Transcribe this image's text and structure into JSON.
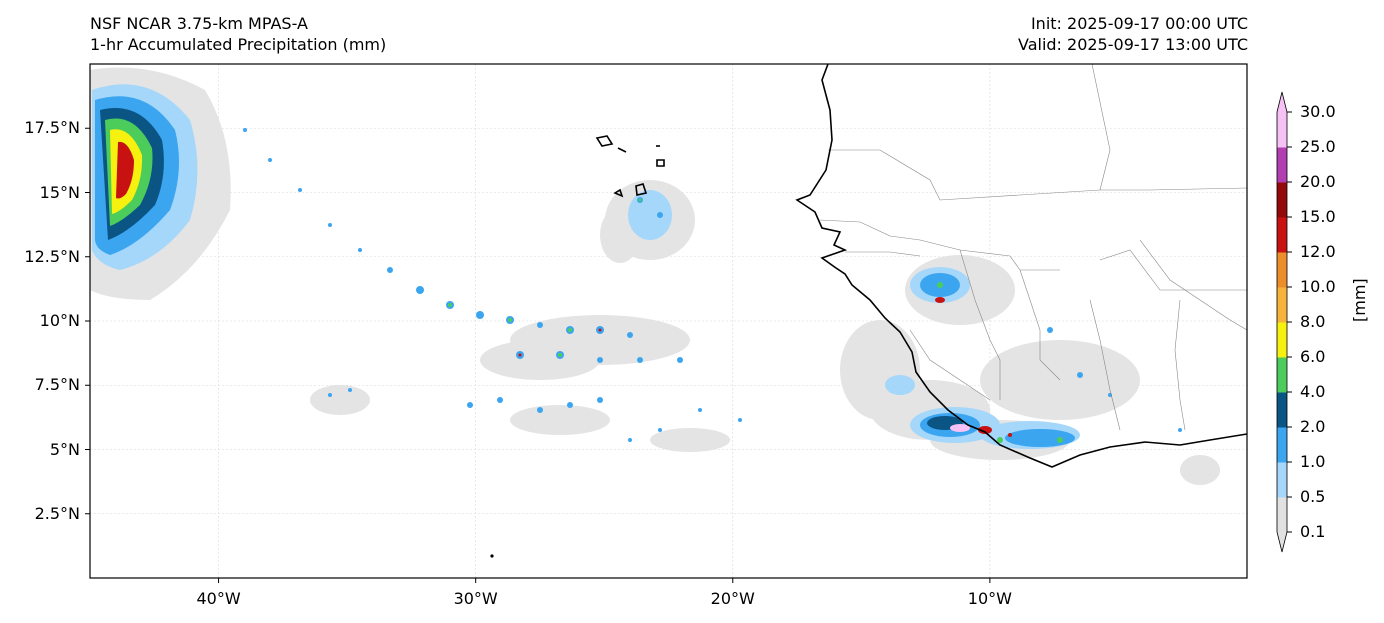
{
  "title_left": {
    "line1": "NSF NCAR 3.75-km MPAS-A",
    "line2": "1-hr Accumulated Precipitation (mm)"
  },
  "title_right": {
    "line1": "Init: 2025-09-17 00:00 UTC",
    "line2": "Valid: 2025-09-17 13:00 UTC"
  },
  "map": {
    "lon_range": [
      -45,
      0
    ],
    "lat_range": [
      0,
      20
    ],
    "lat_ticks": [
      {
        "value": 17.5,
        "label": "17.5°N"
      },
      {
        "value": 15,
        "label": "15°N"
      },
      {
        "value": 12.5,
        "label": "12.5°N"
      },
      {
        "value": 10,
        "label": "10°N"
      },
      {
        "value": 7.5,
        "label": "7.5°N"
      },
      {
        "value": 5,
        "label": "5°N"
      },
      {
        "value": 2.5,
        "label": "2.5°N"
      }
    ],
    "lon_ticks": [
      {
        "value": -40,
        "label": "40°W"
      },
      {
        "value": -30,
        "label": "30°W"
      },
      {
        "value": -20,
        "label": "20°W"
      },
      {
        "value": -10,
        "label": "10°W"
      }
    ],
    "gridlines": true
  },
  "colorbar": {
    "unit": "[mm]",
    "levels": [
      "0.1",
      "0.5",
      "1.0",
      "2.0",
      "4.0",
      "6.0",
      "8.0",
      "10.0",
      "12.0",
      "15.0",
      "20.0",
      "25.0",
      "30.0"
    ],
    "colors": [
      "#e1e1e1",
      "#a5d7fa",
      "#3ca5f0",
      "#0b5585",
      "#4ccc5b",
      "#f6f10e",
      "#f7b43a",
      "#ec8f2b",
      "#c81212",
      "#940a0a",
      "#b13fb0",
      "#f6c1f5"
    ],
    "extend": "both"
  }
}
